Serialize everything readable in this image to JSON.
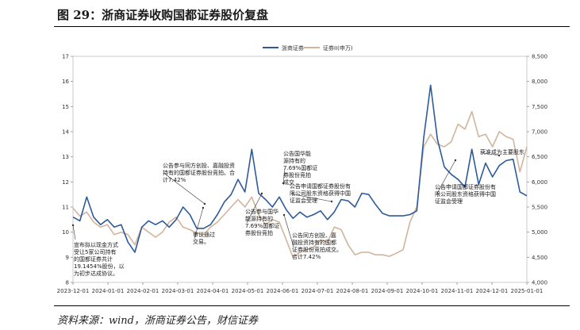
{
  "title": "图 29：浙商证券收购国都证券股价复盘",
  "source": "资料来源：wind，浙商证券公告，财信证券",
  "chart_data": {
    "type": "line",
    "legend": [
      "浙商证券",
      "证券II(申万)"
    ],
    "legend_position": "top",
    "colors": {
      "zs": "#2e5a9c",
      "sw": "#d2b49c"
    },
    "x_labels": [
      "2023-12-01",
      "2024-01-01",
      "2024-02-01",
      "2024-03-01",
      "2024-04-01",
      "2024-05-01",
      "2024-06-01",
      "2024-07-01",
      "2024-08-01",
      "2024-09-01",
      "2024-10-01",
      "2024-11-01",
      "2024-12-01",
      "2025-01-01"
    ],
    "y_left": {
      "min": 8,
      "max": 17,
      "ticks": [
        "8",
        "9",
        "10",
        "11",
        "12",
        "13",
        "14",
        "15",
        "16",
        "17"
      ]
    },
    "y_right": {
      "min": 4000,
      "max": 8500,
      "ticks": [
        "4,000",
        "4,500",
        "5,000",
        "5,500",
        "6,000",
        "6,500",
        "7,000",
        "7,500",
        "8,000",
        "8,500"
      ]
    },
    "series": [
      {
        "name": "浙商证券",
        "axis": "left",
        "values": [
          10.6,
          10.45,
          11.4,
          10.6,
          10.3,
          10.5,
          10.2,
          10.3,
          9.6,
          9.2,
          10.2,
          10.45,
          10.3,
          10.45,
          10.2,
          10.5,
          11.0,
          10.7,
          10.15,
          10.15,
          10.3,
          10.7,
          11.2,
          11.5,
          12.1,
          11.6,
          13.3,
          11.55,
          11.3,
          11.0,
          11.4,
          10.9,
          10.55,
          10.8,
          10.6,
          10.7,
          10.85,
          10.5,
          10.8,
          11.3,
          11.25,
          11.0,
          11.55,
          11.5,
          11.1,
          10.75,
          10.65,
          10.65,
          10.65,
          10.7,
          10.85,
          13.75,
          15.85,
          13.7,
          12.6,
          12.3,
          12.1,
          11.8,
          13.3,
          11.9,
          12.75,
          12.2,
          12.65,
          12.85,
          12.9,
          11.6,
          11.45
        ]
      },
      {
        "name": "证券II(申万)",
        "axis": "right",
        "values": [
          5480,
          5320,
          5400,
          5200,
          5100,
          5150,
          4950,
          5000,
          4950,
          4750,
          5100,
          5000,
          4900,
          5000,
          5200,
          5300,
          5100,
          5050,
          4980,
          4950,
          5100,
          5200,
          5350,
          5500,
          5650,
          5500,
          5700,
          5350,
          5150,
          5250,
          5200,
          4850,
          4500,
          4600,
          4650,
          4700,
          4850,
          4800,
          5100,
          5050,
          4750,
          4550,
          4600,
          4600,
          4550,
          4550,
          4520,
          4580,
          4650,
          5200,
          5500,
          6700,
          6950,
          6750,
          6700,
          6800,
          7150,
          7050,
          7400,
          6900,
          6950,
          6700,
          7000,
          6900,
          6850,
          6200,
          6700
        ]
      }
    ],
    "annotations": [
      {
        "text": [
          "宣布拟以现金方式",
          "受让5家公司持有",
          "的国都证券共计",
          "19.1454%股份，以",
          "为初步达成协议。"
        ]
      },
      {
        "text": [
          "公告参与同方创投、嘉融投资",
          "持有的国都证券股份竞拍。合",
          "计7.42%"
        ]
      },
      {
        "text": [
          "审议通过",
          "交易。"
        ]
      },
      {
        "text": [
          "公告参与国华",
          "能源持有的",
          "7.69%国都证",
          "券股份竞拍"
        ]
      },
      {
        "text": [
          "公告国华能",
          "源持有的",
          "7.69%国都证",
          "券股份竞拍",
          "成交"
        ]
      },
      {
        "text": [
          "公告申请国都证券股份有",
          "限公司股东资格获得中国",
          "证监会受理"
        ]
      },
      {
        "text": [
          "公告同方创投、嘉",
          "融投资持有的国都",
          "证券股份竞拍成交。",
          "合计7.42%"
        ]
      },
      {
        "text": [
          "公告申请国都证券股份有",
          "限公司股东资格获得中国",
          "证监会受理"
        ]
      },
      {
        "text": [
          "获准成为主要股东"
        ]
      }
    ]
  }
}
